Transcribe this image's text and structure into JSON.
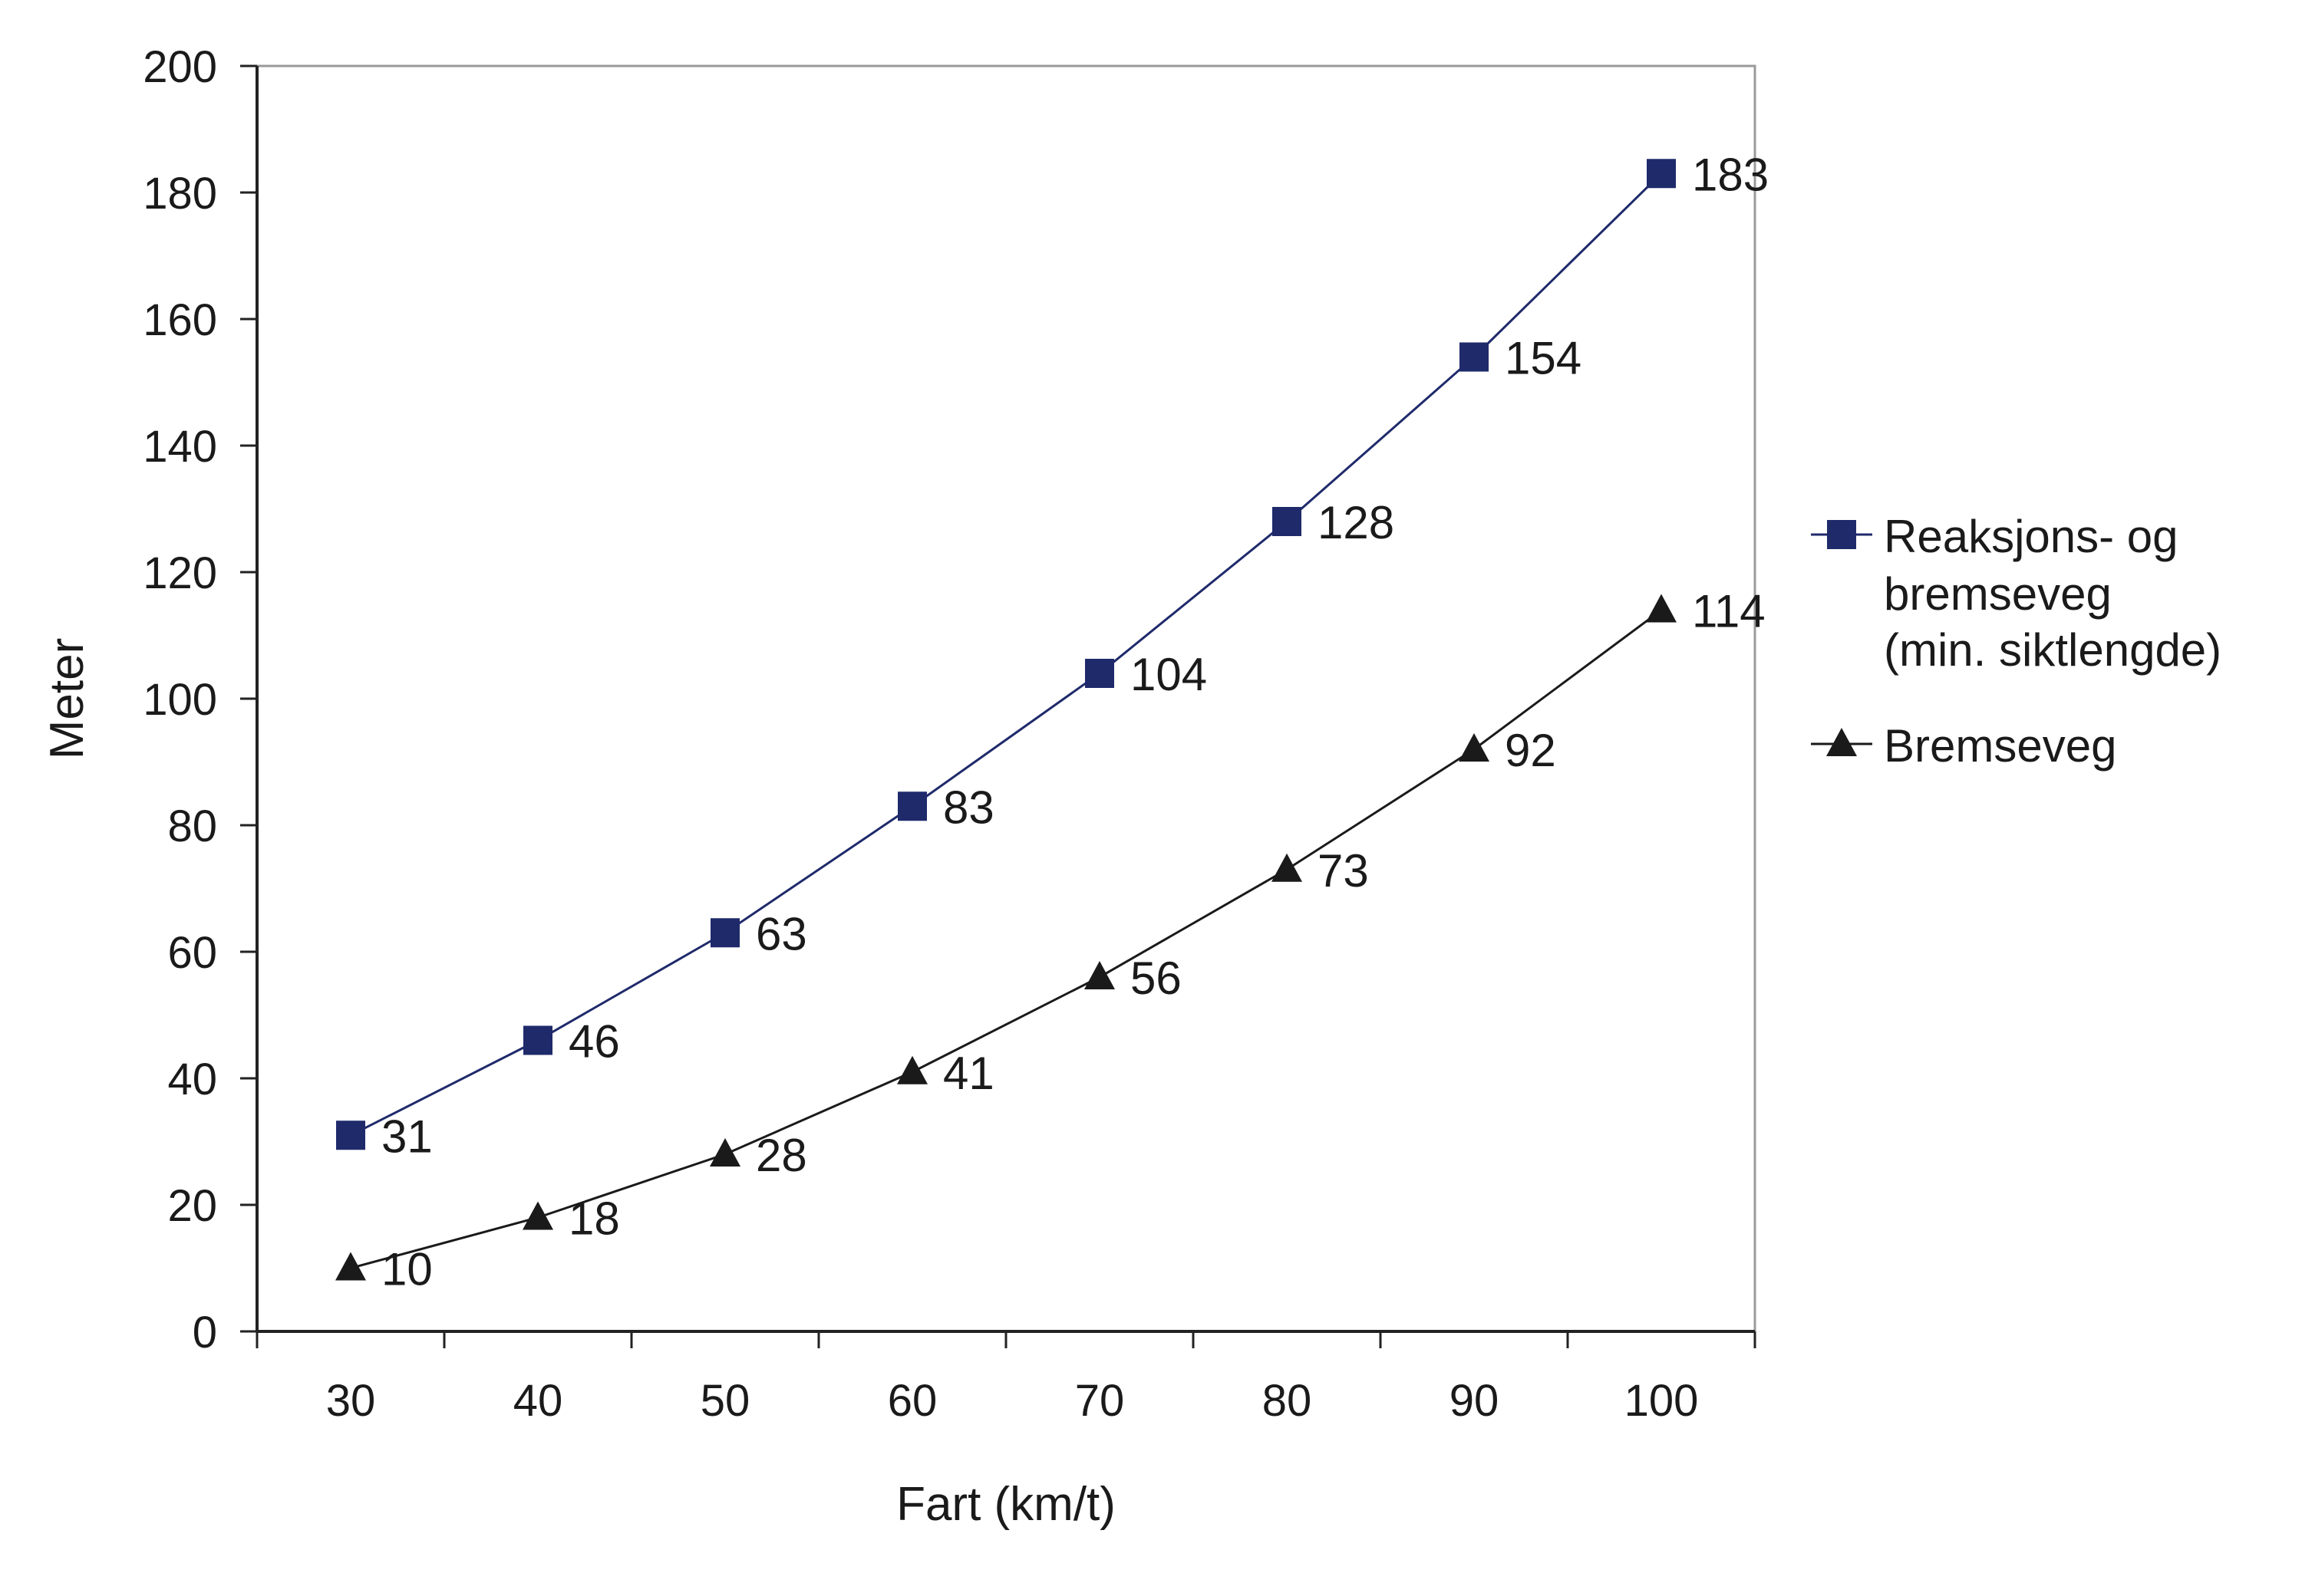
{
  "chart_data": {
    "type": "line",
    "title": "",
    "xlabel": "Fart (km/t)",
    "ylabel": "Meter",
    "x": [
      30,
      40,
      50,
      60,
      70,
      80,
      90,
      100
    ],
    "xlim": [
      25,
      105
    ],
    "ylim": [
      0,
      200
    ],
    "yticks": [
      0,
      20,
      40,
      60,
      80,
      100,
      120,
      140,
      160,
      180,
      200
    ],
    "grid": false,
    "legend_position": "right",
    "series": [
      {
        "name_lines": [
          "Reaksjons- og",
          "bremseveg",
          "(min. siktlengde)"
        ],
        "marker": "square",
        "color": "#1f2a6b",
        "values": [
          31,
          46,
          63,
          83,
          104,
          128,
          154,
          183
        ]
      },
      {
        "name_lines": [
          "Bremseveg"
        ],
        "marker": "triangle",
        "color": "#1a1a1a",
        "values": [
          10,
          18,
          28,
          41,
          56,
          73,
          92,
          114
        ]
      }
    ]
  }
}
